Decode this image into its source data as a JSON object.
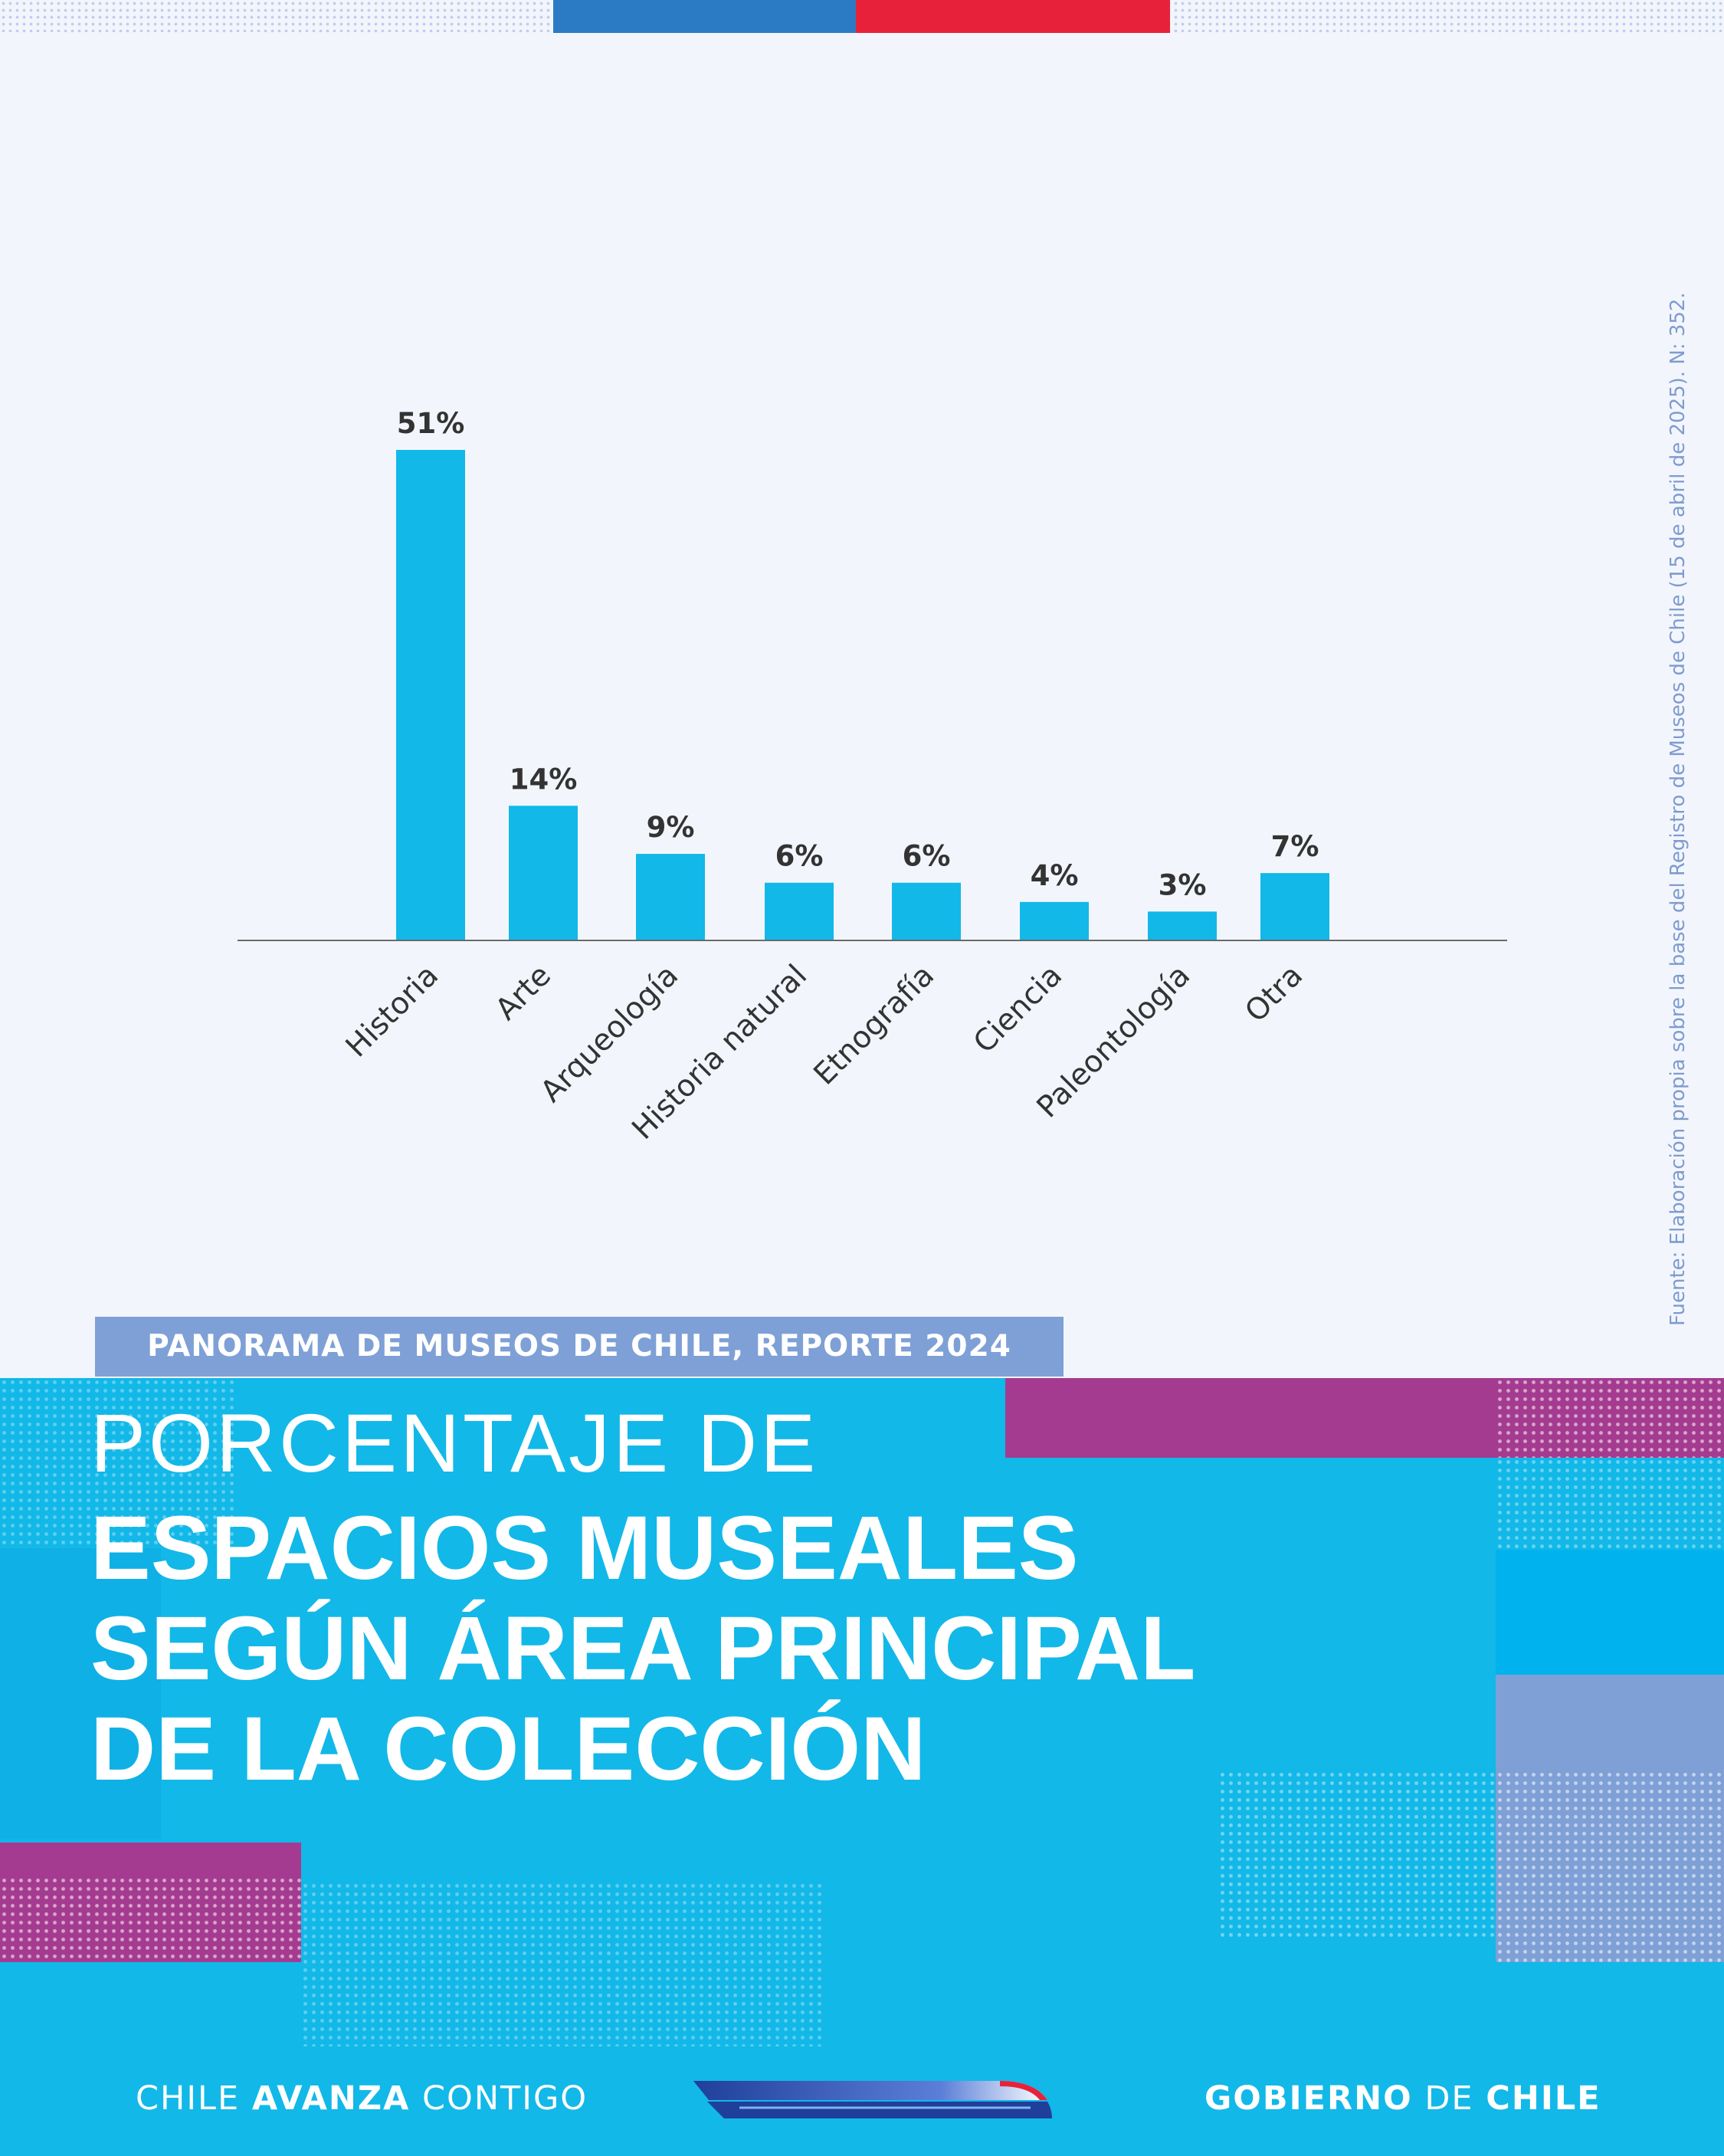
{
  "chart_data": {
    "type": "bar",
    "categories": [
      "Historia",
      "Arte",
      "Arqueología",
      "Historia natural",
      "Etnografía",
      "Ciencia",
      "Paleontología",
      "Otra"
    ],
    "values": [
      51,
      14,
      9,
      6,
      6,
      4,
      3,
      7
    ],
    "value_labels": [
      "51%",
      "14%",
      "9%",
      "6%",
      "6%",
      "4%",
      "3%",
      "7%"
    ],
    "unit": "%",
    "ylim": [
      0,
      55
    ],
    "grid": false,
    "legend": "none"
  },
  "colors": {
    "bar": "#12b8e8",
    "background": "#f2f6fc",
    "banner": "#12b8e8",
    "tag": "#7ea0d6",
    "magenta": "#a53b91",
    "periwinkle": "#7ea0d6",
    "flag_blue": "#2b7bc4",
    "flag_red": "#e8213a"
  },
  "source_note": "Fuente: Elaboración propia sobre la base del Registro de Museos de Chile (15 de abril de 2025). N: 352.",
  "report_tag": "PANORAMA DE MUSEOS DE CHILE, REPORTE 2024",
  "title": {
    "line1": "PORCENTAJE DE",
    "line2": "ESPACIOS MUSEALES",
    "line3": "SEGÚN ÁREA PRINCIPAL",
    "line4": "DE LA COLECCIÓN"
  },
  "footer": {
    "left_regular1": "CHILE ",
    "left_bold": "AVANZA",
    "left_regular2": " CONTIGO",
    "right_bold1": "GOBIERNO",
    "right_regular": " DE ",
    "right_bold2": "CHILE",
    "logo_icon": "train-swoosh-logo"
  }
}
